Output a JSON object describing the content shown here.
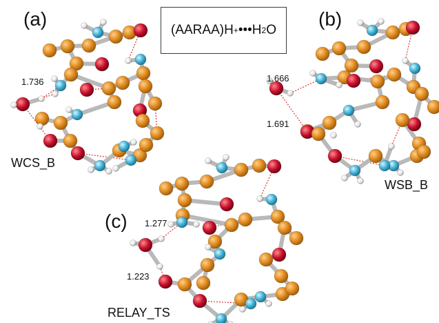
{
  "title": {
    "prefix": "(AARAA)H",
    "charge": "+",
    "dots": "•••",
    "water_main": "H",
    "water_sub": "2",
    "water_end": "O"
  },
  "panels": [
    {
      "id": "a",
      "label": "(a)",
      "name": "WCS_B",
      "distances": [
        "1.736"
      ]
    },
    {
      "id": "b",
      "label": "(b)",
      "name": "WSB_B",
      "distances": [
        "1.666",
        "1.691"
      ]
    },
    {
      "id": "c",
      "label": "(c)",
      "name": "RELAY_TS",
      "distances": [
        "1.277",
        "1.223"
      ]
    }
  ],
  "colors": {
    "carbon": "#e08a1e",
    "nitrogen": "#3fb2d6",
    "oxygen": "#c8102e",
    "hydrogen": "#f2f2f2",
    "bond": "#b9b9b9",
    "hbond": "#e03030"
  }
}
